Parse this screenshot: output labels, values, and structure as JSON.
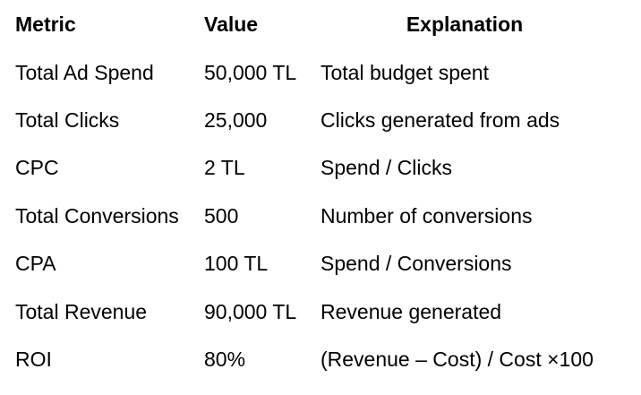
{
  "page": {
    "background": "#ffffff",
    "text_color": "#000000"
  },
  "table": {
    "headers": {
      "metric": "Metric",
      "value": "Value",
      "explanation": "Explanation"
    },
    "rows": [
      {
        "metric": "Total Ad Spend",
        "value": "50,000 TL",
        "explanation": "Total budget spent"
      },
      {
        "metric": "Total Clicks",
        "value": "25,000",
        "explanation": "Clicks generated from ads"
      },
      {
        "metric": "CPC",
        "value": "2 TL",
        "explanation": "Spend / Clicks"
      },
      {
        "metric": "Total Conversions",
        "value": "500",
        "explanation": "Number of conversions"
      },
      {
        "metric": "CPA",
        "value": "100 TL",
        "explanation": "Spend / Conversions"
      },
      {
        "metric": "Total Revenue",
        "value": "90,000 TL",
        "explanation": "Revenue generated"
      },
      {
        "metric": "ROI",
        "value": "80%",
        "explanation": "(Revenue – Cost) / Cost ×100"
      }
    ]
  }
}
